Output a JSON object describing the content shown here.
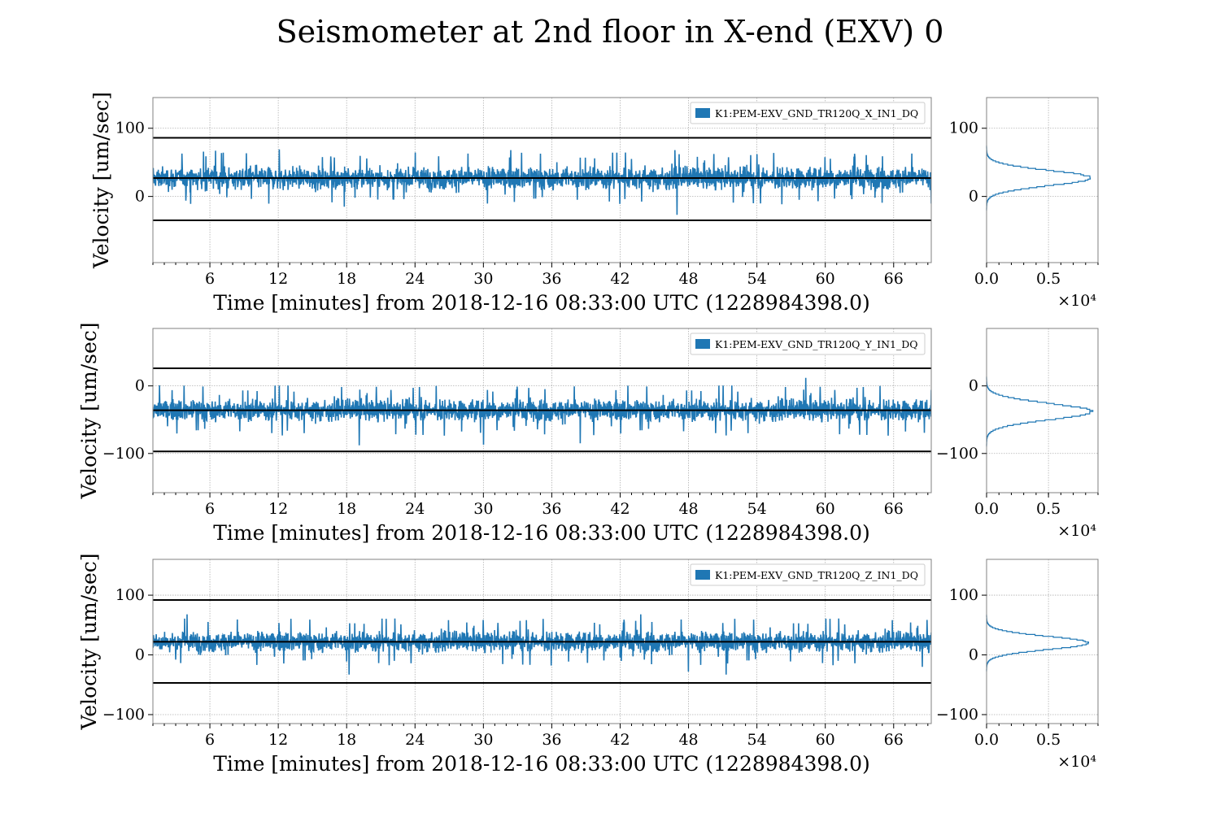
{
  "figure": {
    "title": "Seismometer at 2nd floor in X-end (EXV) 0",
    "colors": {
      "series": "#1f77b4",
      "threshold": "#000000",
      "frame": "#808080",
      "grid": "#b0b0b0"
    }
  },
  "chart_data": [
    {
      "type": "line",
      "panel": "X",
      "legend": "K1:PEM-EXV_GND_TR120Q_X_IN1_DQ",
      "legend_placement": "top-right",
      "xlabel": "Time [minutes] from 2018-12-16 08:33:00 UTC (1228984398.0)",
      "ylabel": "Velocity [um/sec]",
      "xlim": [
        1,
        69.3
      ],
      "ylim": [
        -97,
        145
      ],
      "x_ticks": [
        "6",
        "12",
        "18",
        "24",
        "30",
        "36",
        "42",
        "48",
        "54",
        "60",
        "66"
      ],
      "y_ticks": [
        "0",
        "100"
      ],
      "grid": true,
      "thresholds": {
        "upper": 86,
        "median": 27,
        "lower": -35
      },
      "series": [
        {
          "name": "K1:PEM-EXV_GND_TR120Q_X_IN1_DQ",
          "center": 27,
          "envelope": [
            -1,
            52
          ],
          "extremes": [
            -27,
            70
          ],
          "spikes": [
            {
              "x": 47.0,
              "y": -27
            },
            {
              "x": 46.8,
              "y": 68
            },
            {
              "x": 12.1,
              "y": 69
            },
            {
              "x": 6.5,
              "y": 67
            },
            {
              "x": 32.4,
              "y": 68
            },
            {
              "x": 17.8,
              "y": -15
            }
          ]
        }
      ],
      "histogram": {
        "xlim": [
          0,
          0.9
        ],
        "ylim": [
          -97,
          145
        ],
        "x_ticks": [
          "0.0",
          "0.5"
        ],
        "y_ticks": [
          "0",
          "100"
        ],
        "multiplier": "×10⁴",
        "peak_count": 0.85,
        "peak_at": 27,
        "sigma": 11
      }
    },
    {
      "type": "line",
      "panel": "Y",
      "legend": "K1:PEM-EXV_GND_TR120Q_Y_IN1_DQ",
      "legend_placement": "top-right",
      "xlabel": "Time [minutes] from 2018-12-16 08:33:00 UTC (1228984398.0)",
      "ylabel": "Velocity [um/sec]",
      "xlim": [
        1,
        69.3
      ],
      "ylim": [
        -158,
        85
      ],
      "x_ticks": [
        "6",
        "12",
        "18",
        "24",
        "30",
        "36",
        "42",
        "48",
        "54",
        "60",
        "66"
      ],
      "y_ticks": [
        "0",
        "−100"
      ],
      "grid": true,
      "thresholds": {
        "upper": 26,
        "median": -36,
        "lower": -97
      },
      "series": [
        {
          "name": "K1:PEM-EXV_GND_TR120Q_Y_IN1_DQ",
          "center": -36,
          "envelope": [
            -62,
            -10
          ],
          "extremes": [
            -88,
            12
          ],
          "spikes": [
            {
              "x": 19.1,
              "y": -88
            },
            {
              "x": 30.0,
              "y": -87
            },
            {
              "x": 58.3,
              "y": 12
            },
            {
              "x": 19.3,
              "y": -18
            },
            {
              "x": 38.5,
              "y": -85
            }
          ]
        }
      ],
      "histogram": {
        "xlim": [
          0,
          0.9
        ],
        "ylim": [
          -158,
          85
        ],
        "x_ticks": [
          "0.0",
          "0.5"
        ],
        "y_ticks": [
          "0",
          "−100"
        ],
        "multiplier": "×10⁴",
        "peak_count": 0.85,
        "peak_at": -38,
        "sigma": 12
      }
    },
    {
      "type": "line",
      "panel": "Z",
      "legend": "K1:PEM-EXV_GND_TR120Q_Z_IN1_DQ",
      "legend_placement": "top-right",
      "xlabel": "Time [minutes] from 2018-12-16 08:33:00 UTC (1228984398.0)",
      "ylabel": "Velocity [um/sec]",
      "xlim": [
        1,
        69.3
      ],
      "ylim": [
        -115,
        160
      ],
      "x_ticks": [
        "6",
        "12",
        "18",
        "24",
        "30",
        "36",
        "42",
        "48",
        "54",
        "60",
        "66"
      ],
      "y_ticks": [
        "0",
        "100",
        "−100"
      ],
      "grid": true,
      "thresholds": {
        "upper": 92,
        "median": 22,
        "lower": -47
      },
      "series": [
        {
          "name": "K1:PEM-EXV_GND_TR120Q_Z_IN1_DQ",
          "center": 22,
          "envelope": [
            -5,
            50
          ],
          "extremes": [
            -33,
            70
          ],
          "spikes": [
            {
              "x": 18.2,
              "y": -33
            },
            {
              "x": 51.3,
              "y": -33
            },
            {
              "x": 4.0,
              "y": 68
            },
            {
              "x": 43.8,
              "y": 68
            },
            {
              "x": 48.0,
              "y": -28
            },
            {
              "x": 68.5,
              "y": -20
            }
          ]
        }
      ],
      "histogram": {
        "xlim": [
          0,
          0.9
        ],
        "ylim": [
          -115,
          160
        ],
        "x_ticks": [
          "0.0",
          "0.5"
        ],
        "y_ticks": [
          "0",
          "100",
          "−100"
        ],
        "multiplier": "×10⁴",
        "peak_count": 0.82,
        "peak_at": 20,
        "sigma": 11
      }
    }
  ]
}
